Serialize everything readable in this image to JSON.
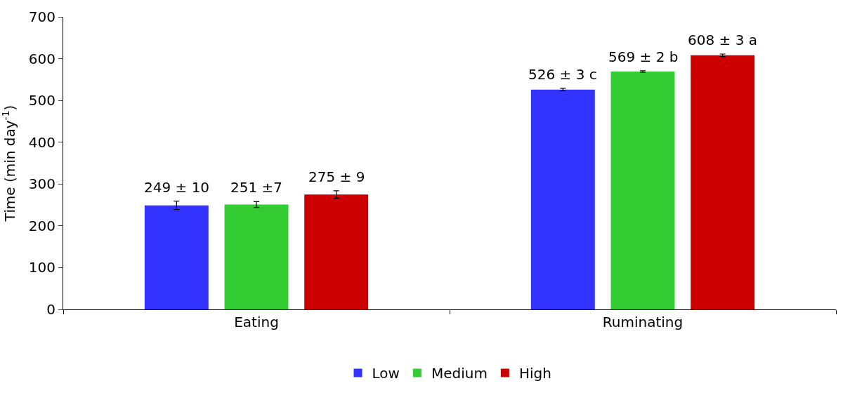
{
  "chart_data": {
    "type": "bar",
    "ylabel": "Time (min day$^{-1}$)",
    "categories": [
      "Eating",
      "Ruminating"
    ],
    "series": [
      {
        "name": "Low",
        "color": "#3333ff",
        "values": [
          249,
          526
        ],
        "errors": [
          10,
          3
        ],
        "value_labels": [
          "249 ± 10",
          "526 ± 3 c"
        ]
      },
      {
        "name": "Medium",
        "color": "#33cc33",
        "values": [
          251,
          569
        ],
        "errors": [
          7,
          2
        ],
        "value_labels": [
          "251 ±7",
          "569 ± 2 b"
        ]
      },
      {
        "name": "High",
        "color": "#cc0000",
        "values": [
          275,
          608
        ],
        "errors": [
          9,
          3
        ],
        "value_labels": [
          "275 ± 9",
          "608 ± 3 a"
        ]
      }
    ],
    "ylim": [
      0,
      700
    ],
    "yticks": [
      0,
      100,
      200,
      300,
      400,
      500,
      600,
      700
    ],
    "legend": "bottom"
  }
}
